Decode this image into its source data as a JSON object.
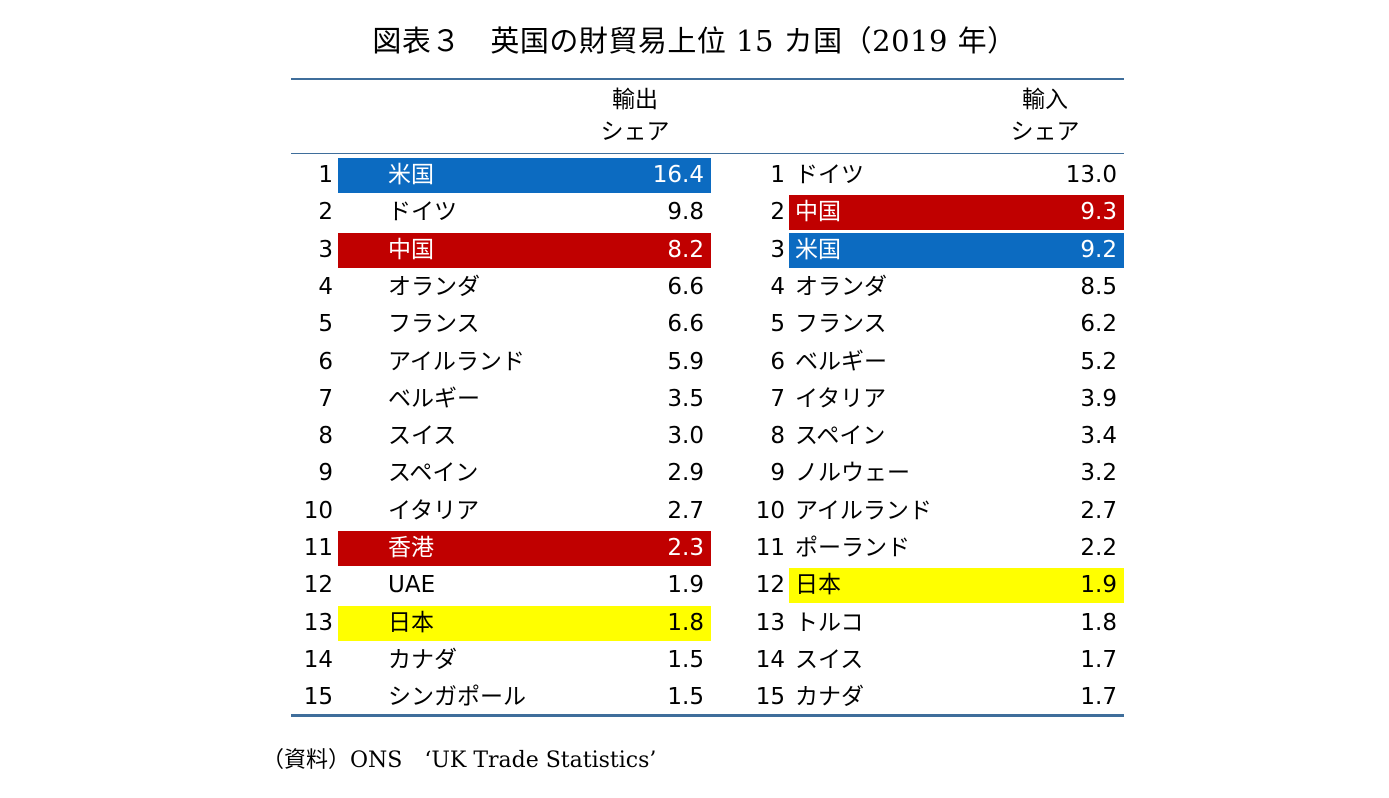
{
  "title": "図表３　英国の財貿易上位 15 カ国（2019 年）",
  "export_header": {
    "line1": "輸出",
    "line2": "シェア"
  },
  "import_header": {
    "line1": "輸入",
    "line2": "シェア"
  },
  "exports": [
    {
      "rank": "1",
      "country": "米国",
      "share": "16.4",
      "highlight": "blue"
    },
    {
      "rank": "2",
      "country": "ドイツ",
      "share": "9.8",
      "highlight": "none"
    },
    {
      "rank": "3",
      "country": "中国",
      "share": "8.2",
      "highlight": "red"
    },
    {
      "rank": "4",
      "country": "オランダ",
      "share": "6.6",
      "highlight": "none"
    },
    {
      "rank": "5",
      "country": "フランス",
      "share": "6.6",
      "highlight": "none"
    },
    {
      "rank": "6",
      "country": "アイルランド",
      "share": "5.9",
      "highlight": "none"
    },
    {
      "rank": "7",
      "country": "ベルギー",
      "share": "3.5",
      "highlight": "none"
    },
    {
      "rank": "8",
      "country": "スイス",
      "share": "3.0",
      "highlight": "none"
    },
    {
      "rank": "9",
      "country": "スペイン",
      "share": "2.9",
      "highlight": "none"
    },
    {
      "rank": "10",
      "country": "イタリア",
      "share": "2.7",
      "highlight": "none"
    },
    {
      "rank": "11",
      "country": "香港",
      "share": "2.3",
      "highlight": "red"
    },
    {
      "rank": "12",
      "country": "UAE",
      "share": "1.9",
      "highlight": "none"
    },
    {
      "rank": "13",
      "country": "日本",
      "share": "1.8",
      "highlight": "yellow"
    },
    {
      "rank": "14",
      "country": "カナダ",
      "share": "1.5",
      "highlight": "none"
    },
    {
      "rank": "15",
      "country": "シンガポール",
      "share": "1.5",
      "highlight": "none"
    }
  ],
  "imports": [
    {
      "rank": "1",
      "country": "ドイツ",
      "share": "13.0",
      "highlight": "none"
    },
    {
      "rank": "2",
      "country": "中国",
      "share": "9.3",
      "highlight": "red"
    },
    {
      "rank": "3",
      "country": "米国",
      "share": "9.2",
      "highlight": "blue"
    },
    {
      "rank": "4",
      "country": "オランダ",
      "share": "8.5",
      "highlight": "none"
    },
    {
      "rank": "5",
      "country": "フランス",
      "share": "6.2",
      "highlight": "none"
    },
    {
      "rank": "6",
      "country": "ベルギー",
      "share": "5.2",
      "highlight": "none"
    },
    {
      "rank": "7",
      "country": "イタリア",
      "share": "3.9",
      "highlight": "none"
    },
    {
      "rank": "8",
      "country": "スペイン",
      "share": "3.4",
      "highlight": "none"
    },
    {
      "rank": "9",
      "country": "ノルウェー",
      "share": "3.2",
      "highlight": "none"
    },
    {
      "rank": "10",
      "country": "アイルランド",
      "share": "2.7",
      "highlight": "none"
    },
    {
      "rank": "11",
      "country": "ポーランド",
      "share": "2.2",
      "highlight": "none"
    },
    {
      "rank": "12",
      "country": "日本",
      "share": "1.9",
      "highlight": "yellow"
    },
    {
      "rank": "13",
      "country": "トルコ",
      "share": "1.8",
      "highlight": "none"
    },
    {
      "rank": "14",
      "country": "スイス",
      "share": "1.7",
      "highlight": "none"
    },
    {
      "rank": "15",
      "country": "カナダ",
      "share": "1.7",
      "highlight": "none"
    }
  ],
  "source": "（資料）ONS　‘UK Trade Statistics’",
  "colors": {
    "blue": "#0c6bc1",
    "red": "#c00000",
    "yellow": "#ffff00",
    "rule": "#3f6e9b"
  }
}
